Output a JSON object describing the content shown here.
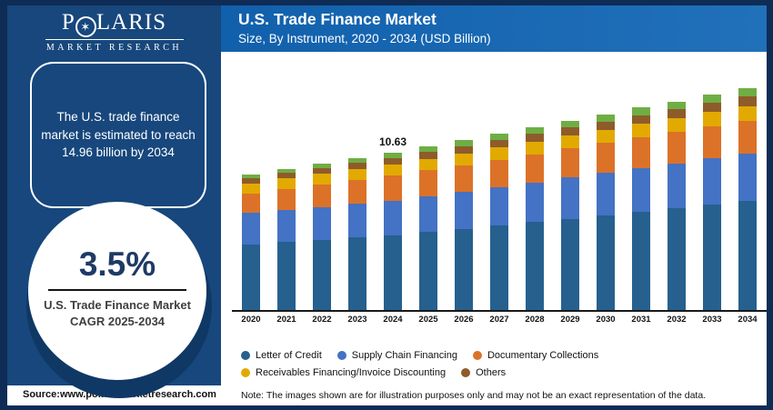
{
  "brand": {
    "name_prefix": "P",
    "name_suffix": "LARIS",
    "star_icon": "✶",
    "tagline": "MARKET RESEARCH"
  },
  "left_panel": {
    "headline": "The U.S. trade finance market is estimated to reach 14.96 billion by 2034",
    "stat": {
      "value": "3.5%",
      "label_line1": "U.S. Trade Finance Market",
      "label_line2": "CAGR 2025-2034"
    }
  },
  "header": {
    "title": "U.S. Trade Finance Market",
    "subtitle": "Size, By Instrument, 2020 - 2034 (USD Billion)"
  },
  "chart_data": {
    "type": "bar",
    "stacked": true,
    "unit": "USD Billion",
    "title": "U.S. Trade Finance Market Size, By Instrument, 2020 - 2034 (USD Billion)",
    "xlabel": "",
    "ylabel": "",
    "ylim": [
      0,
      16
    ],
    "grid": false,
    "legend_position": "bottom",
    "categories": [
      "2020",
      "2021",
      "2022",
      "2023",
      "2024",
      "2025",
      "2026",
      "2027",
      "2028",
      "2029",
      "2030",
      "2031",
      "2032",
      "2033",
      "2034"
    ],
    "series": [
      {
        "name": "Letter of Credit",
        "color": "#26608e",
        "values": [
          4.42,
          4.58,
          4.73,
          4.89,
          5.04,
          5.25,
          5.47,
          5.7,
          5.93,
          6.16,
          6.39,
          6.63,
          6.86,
          7.1,
          7.34
        ]
      },
      {
        "name": "Supply Chain Financing",
        "color": "#4472c4",
        "values": [
          2.12,
          2.17,
          2.22,
          2.27,
          2.32,
          2.41,
          2.5,
          2.59,
          2.68,
          2.77,
          2.87,
          2.96,
          3.05,
          3.14,
          3.23
        ]
      },
      {
        "name": "Documentary Collections",
        "color": "#dc7228",
        "values": [
          1.32,
          1.42,
          1.52,
          1.61,
          1.71,
          1.76,
          1.81,
          1.86,
          1.91,
          1.97,
          2.02,
          2.07,
          2.12,
          2.17,
          2.22
        ]
      },
      {
        "name": "Receivables Financing/Invoice Discounting",
        "color": "#e2aa00",
        "values": [
          0.7,
          0.71,
          0.72,
          0.73,
          0.74,
          0.77,
          0.79,
          0.82,
          0.84,
          0.87,
          0.89,
          0.92,
          0.94,
          0.97,
          0.99
        ]
      },
      {
        "name": "Others",
        "color": "#8e5c2a",
        "values": [
          0.37,
          0.39,
          0.41,
          0.43,
          0.45,
          0.47,
          0.48,
          0.5,
          0.52,
          0.54,
          0.55,
          0.57,
          0.59,
          0.6,
          0.62
        ]
      },
      {
        "name": "(unlabeled)",
        "color": "#6fae44",
        "in_legend": false,
        "values": [
          0.21,
          0.25,
          0.29,
          0.33,
          0.37,
          0.39,
          0.41,
          0.43,
          0.45,
          0.47,
          0.49,
          0.51,
          0.52,
          0.54,
          0.56
        ]
      }
    ],
    "annotations": [
      {
        "category": "2024",
        "text": "10.63"
      }
    ],
    "totals_labeled": {
      "2024": 10.63,
      "2034_projection": 14.96
    },
    "legend_rows": [
      [
        0,
        1,
        2
      ],
      [
        3,
        4
      ]
    ]
  },
  "footer": {
    "source": "Source:www.polarismarketresearch.com",
    "note": "Note: The images shown are for illustration purposes only and may not be an exact representation of the data."
  },
  "colors": {
    "frame": "#0e2c56",
    "panel": "#17477c",
    "header_gradient_start": "#1160ac",
    "header_gradient_end": "#2170ba",
    "stat_value": "#1e3a66",
    "axis": "#1a1a1a"
  }
}
